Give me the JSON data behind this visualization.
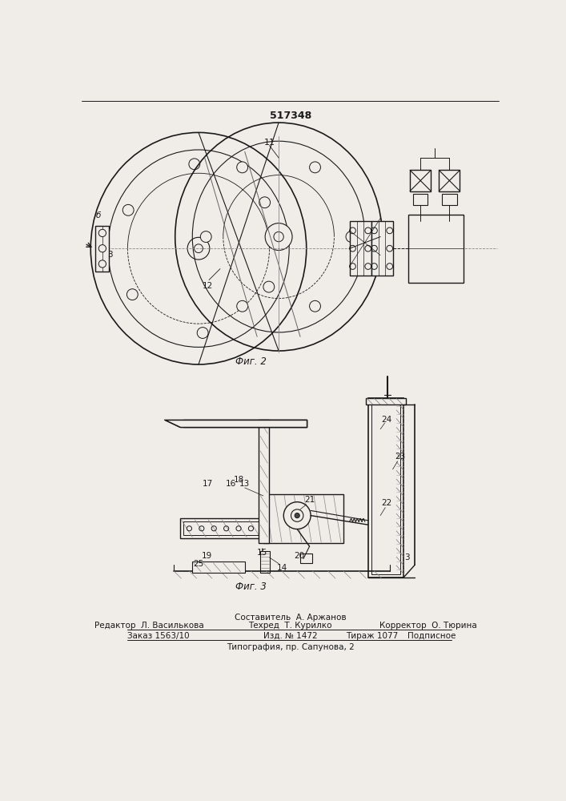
{
  "patent_number": "517348",
  "fig2_label": "Фиг. 2",
  "fig3_label": "Фиг. 3",
  "footer_line1": "Составитель  А. Аржанов",
  "footer_editor": "Редактор  Л. Василькова",
  "footer_tech": "Техред  Т. Курилко",
  "footer_corrector": "Корректор  О. Тюрина",
  "footer_order": "Заказ 1563/10",
  "footer_pub": "Изд. № 1472",
  "footer_circ": "Тираж 1077",
  "footer_sign": "Подписное",
  "footer_typography": "Типография, пр. Сапунова, 2",
  "bg_color": "#f0ede8",
  "line_color": "#1a1a1a"
}
